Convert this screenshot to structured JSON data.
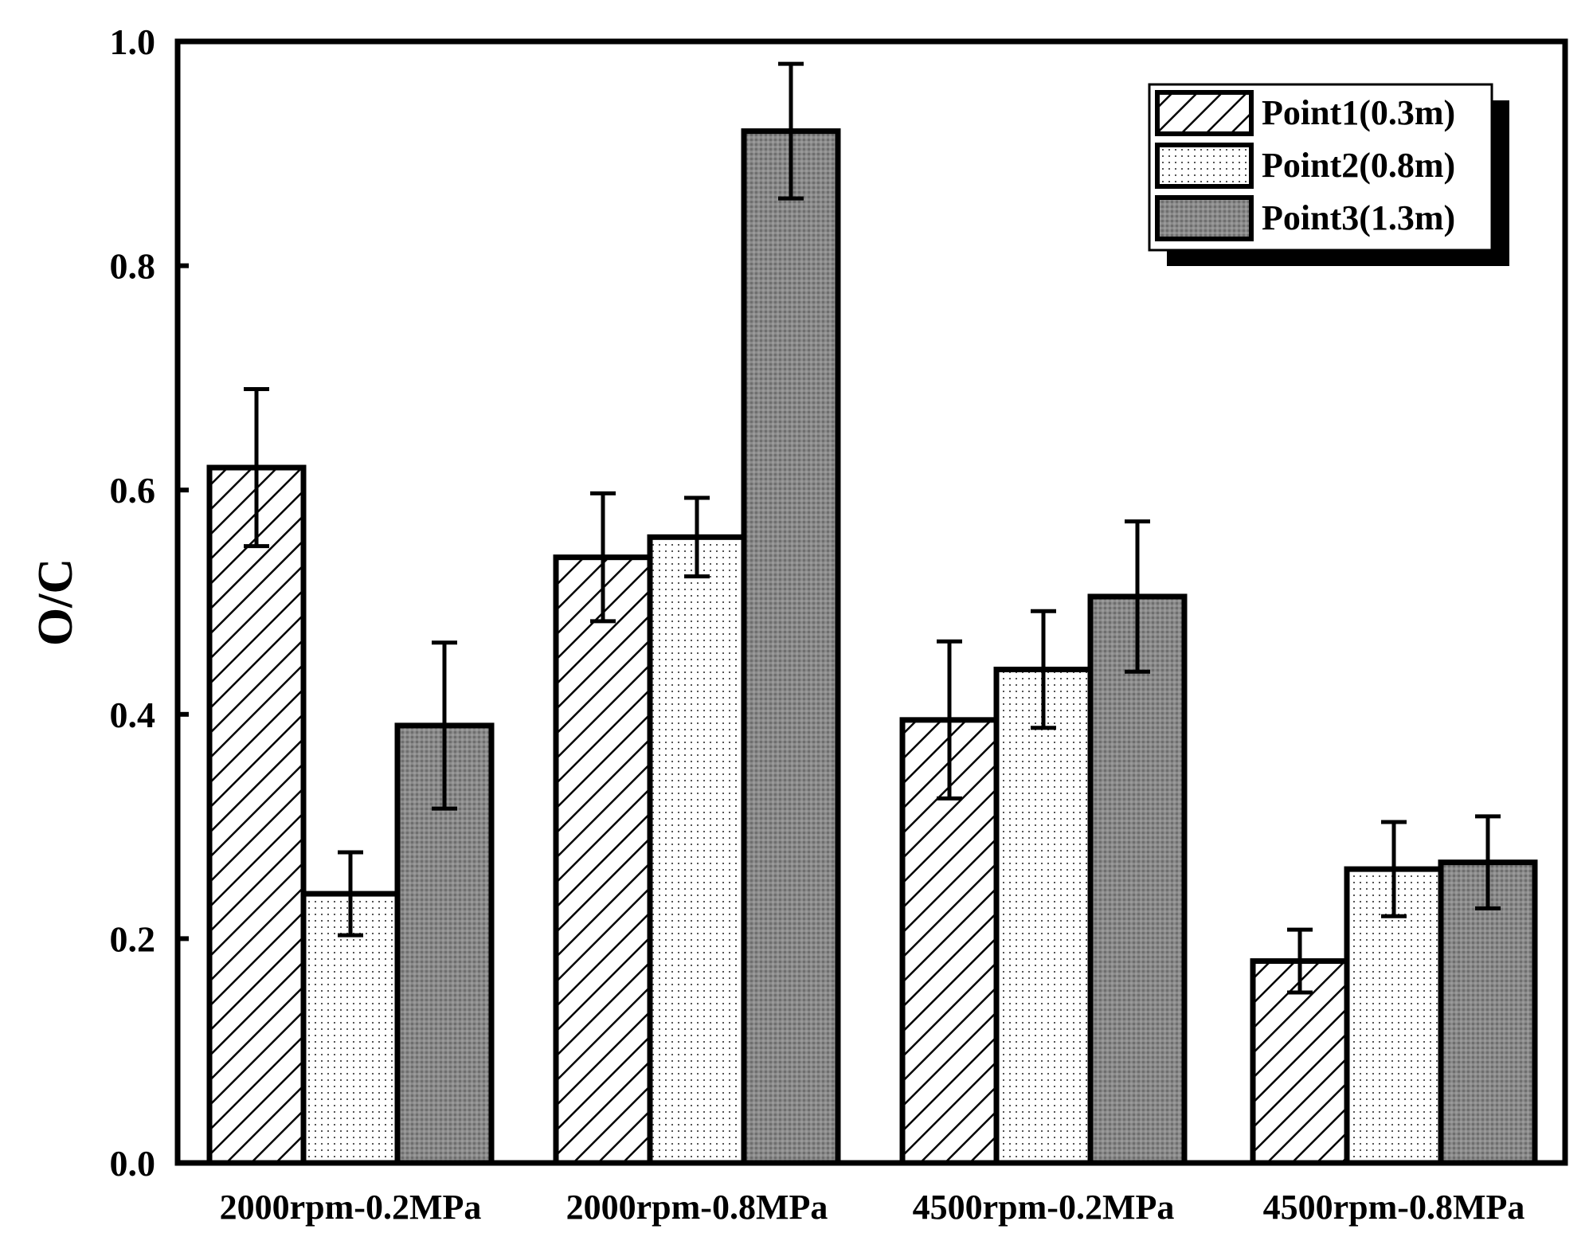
{
  "chart_data": {
    "type": "bar",
    "title": "",
    "xlabel": "",
    "ylabel": "O/C",
    "ylim": [
      0,
      1.0
    ],
    "yticks": [
      "0.0",
      "0.2",
      "0.4",
      "0.6",
      "0.8",
      "1.0"
    ],
    "grid": false,
    "legend_position": "top-right",
    "categories": [
      "2000rpm-0.2MPa",
      "2000rpm-0.8MPa",
      "4500rpm-0.2MPa",
      "4500rpm-0.8MPa"
    ],
    "series": [
      {
        "name": "Point1(0.3m)",
        "pattern": "hatch",
        "values": [
          0.62,
          0.54,
          0.395,
          0.18
        ],
        "errors": [
          0.07,
          0.057,
          0.07,
          0.028
        ]
      },
      {
        "name": "Point2(0.8m)",
        "pattern": "dots",
        "values": [
          0.24,
          0.558,
          0.44,
          0.262
        ],
        "errors": [
          0.037,
          0.035,
          0.052,
          0.042
        ]
      },
      {
        "name": "Point3(1.3m)",
        "pattern": "dark",
        "values": [
          0.39,
          0.92,
          0.505,
          0.268
        ],
        "errors": [
          0.074,
          0.06,
          0.067,
          0.041
        ]
      }
    ]
  }
}
